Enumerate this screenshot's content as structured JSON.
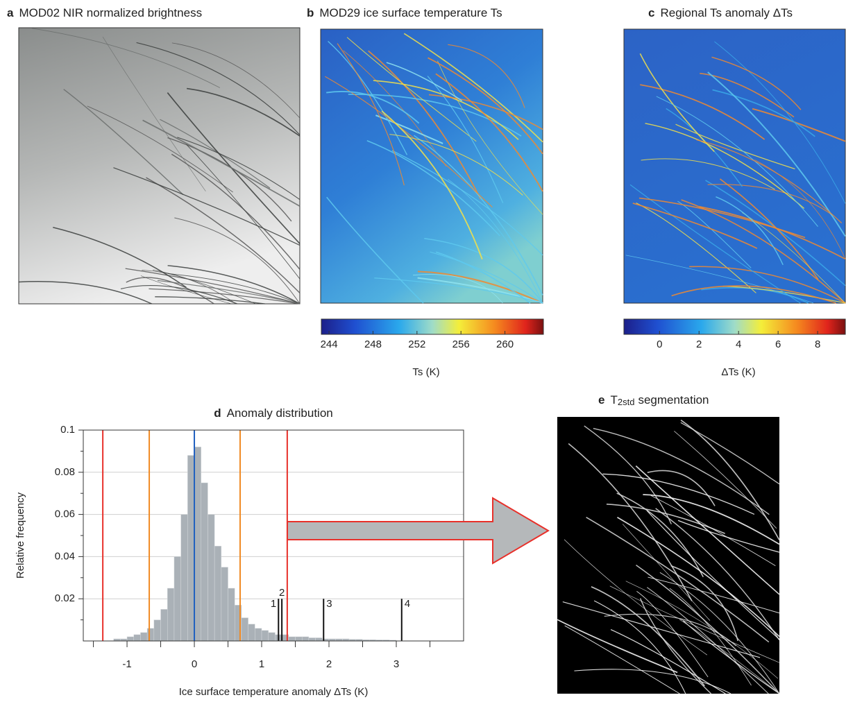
{
  "chart_data": [
    {
      "type": "image",
      "label": "a",
      "title": "MOD02 NIR normalized brightness"
    },
    {
      "type": "heatmap",
      "label": "b",
      "title": "MOD29 ice surface temperature Ts",
      "colorbar": {
        "label": "Ts (K)",
        "lim": [
          243.3,
          263.5
        ],
        "ticks": [
          244,
          248,
          252,
          256,
          260
        ]
      }
    },
    {
      "type": "heatmap",
      "label": "c",
      "title": "Regional Ts anomaly ΔTs",
      "colorbar": {
        "label": "ΔTs (K)",
        "lim": [
          -1.8,
          9.4
        ],
        "ticks": [
          0,
          2,
          4,
          6,
          8
        ]
      }
    },
    {
      "type": "histogram",
      "label": "d",
      "title": "Anomaly distribution",
      "xlabel": "Ice surface temperature anomaly ΔTs (K)",
      "ylabel": "Relative frequency",
      "bins": [
        -1.2,
        -1.1,
        -1.0,
        -0.9,
        -0.8,
        -0.7,
        -0.6,
        -0.5,
        -0.4,
        -0.3,
        -0.2,
        -0.1,
        0.0,
        0.1,
        0.2,
        0.3,
        0.4,
        0.5,
        0.6,
        0.7,
        0.8,
        0.9,
        1.0,
        1.1,
        1.2,
        1.3,
        1.4,
        1.5,
        1.6,
        1.7,
        1.8,
        1.9,
        2.0,
        2.1,
        2.2,
        2.3,
        2.4,
        2.5,
        2.6,
        2.7,
        2.8,
        2.9,
        3.0
      ],
      "values": [
        0.001,
        0.001,
        0.002,
        0.003,
        0.004,
        0.006,
        0.01,
        0.015,
        0.025,
        0.04,
        0.06,
        0.088,
        0.092,
        0.075,
        0.06,
        0.045,
        0.035,
        0.025,
        0.017,
        0.011,
        0.008,
        0.006,
        0.005,
        0.004,
        0.003,
        0.003,
        0.002,
        0.002,
        0.002,
        0.0015,
        0.0015,
        0.001,
        0.001,
        0.001,
        0.001,
        0.0008,
        0.0008,
        0.0006,
        0.0006,
        0.0005,
        0.0005,
        0.0004
      ],
      "color": "#aab1b7",
      "xlim": [
        -1.65,
        4.0
      ],
      "ylim": [
        0,
        0.1
      ],
      "xticks": [
        -1,
        0,
        1,
        2,
        3
      ],
      "xminorticks": [
        -1.5,
        -0.5,
        0.5,
        1.5,
        2.5,
        3.5
      ],
      "yticks": [
        0.02,
        0.04,
        0.06,
        0.08,
        0.1
      ],
      "yminorticks": [
        0.01,
        0.03,
        0.05,
        0.07,
        0.09
      ],
      "grid": true,
      "thresholds": [
        {
          "value": -1.36,
          "color": "#e8302a"
        },
        {
          "value": -0.67,
          "color": "#f08a24"
        },
        {
          "value": 0,
          "color": "#1f5fbf"
        },
        {
          "value": 0.68,
          "color": "#f08a24"
        },
        {
          "value": 1.38,
          "color": "#e8302a"
        }
      ],
      "markers": [
        {
          "x": 1.25,
          "height": 0.02,
          "label": "1"
        },
        {
          "x": 1.3,
          "height": 0.02,
          "label": "2"
        },
        {
          "x": 1.92,
          "height": 0.02,
          "label": "3"
        },
        {
          "x": 3.08,
          "height": 0.02,
          "label": "4"
        }
      ]
    },
    {
      "type": "image",
      "label": "e",
      "title": "T",
      "title_subscript": "2std",
      "title_suffix": "segmentation"
    }
  ]
}
